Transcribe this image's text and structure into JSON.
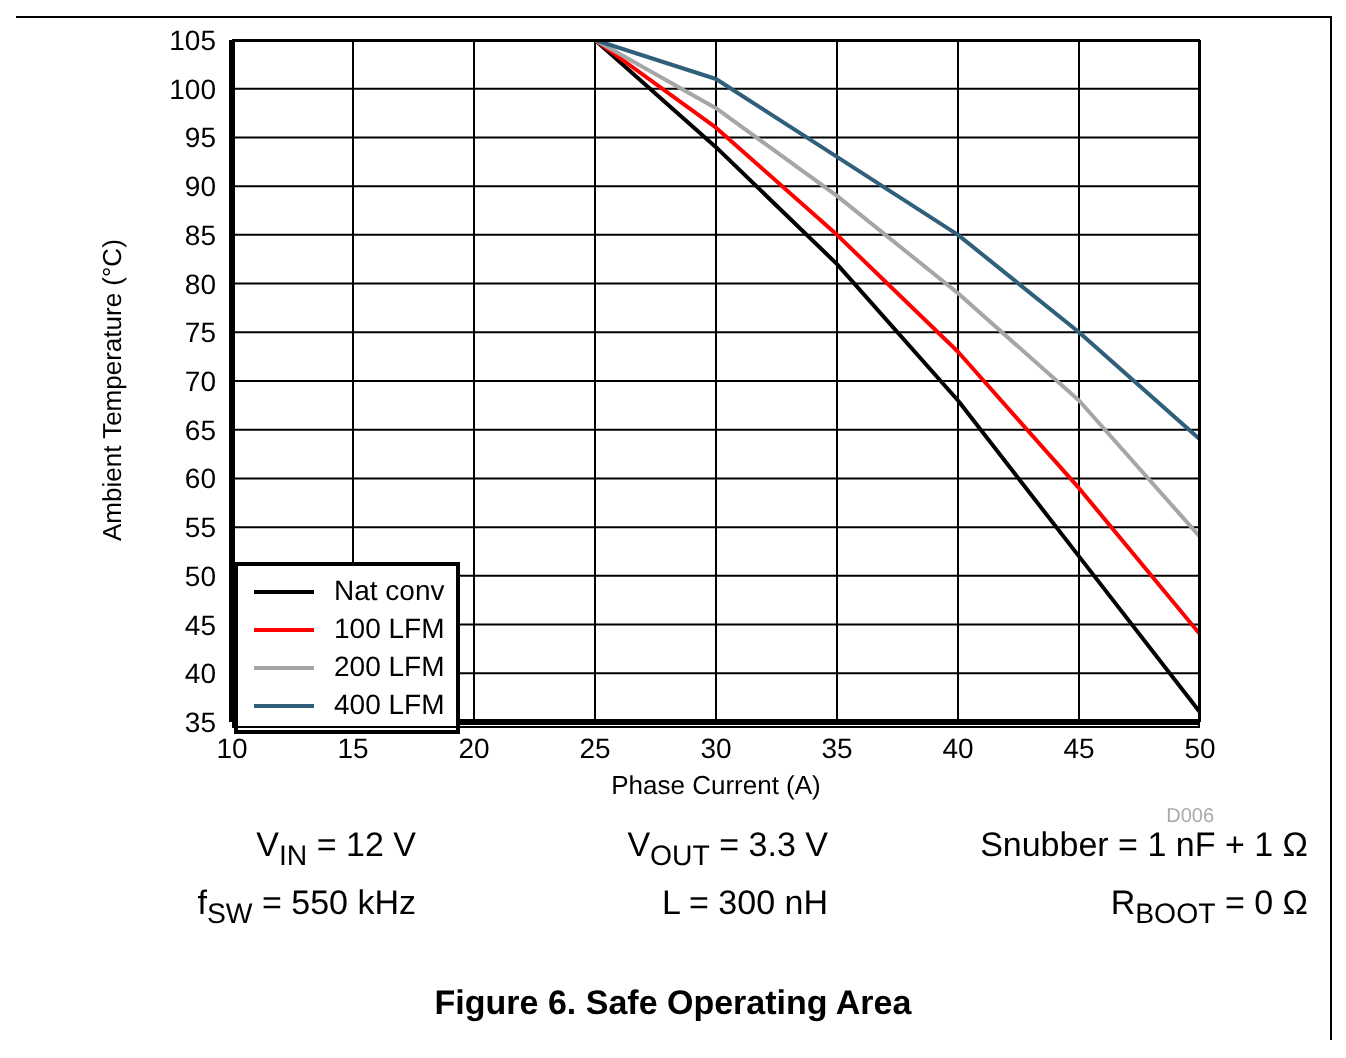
{
  "chart_data": {
    "type": "line",
    "title": "Figure 6. Safe Operating Area",
    "xlabel": "Phase Current (A)",
    "ylabel": "Ambient Temperature (°C)",
    "x": [
      25,
      30,
      35,
      40,
      45,
      50
    ],
    "series": [
      {
        "name": "Nat conv",
        "color": "#000000",
        "values": [
          105,
          94,
          82,
          68,
          52,
          36
        ]
      },
      {
        "name": "100 LFM",
        "color": "#ff0000",
        "values": [
          105,
          96,
          85,
          73,
          59,
          44
        ]
      },
      {
        "name": "200 LFM",
        "color": "#a6a6a6",
        "values": [
          105,
          98,
          89,
          79,
          68,
          54
        ]
      },
      {
        "name": "400 LFM",
        "color": "#2f5f7a",
        "values": [
          105,
          101,
          93,
          85,
          75,
          64
        ]
      }
    ],
    "xlim": [
      10,
      50
    ],
    "xticks": [
      10,
      15,
      20,
      25,
      30,
      35,
      40,
      45,
      50
    ],
    "ylim": [
      35,
      105
    ],
    "yticks": [
      35,
      40,
      45,
      50,
      55,
      60,
      65,
      70,
      75,
      80,
      85,
      90,
      95,
      100,
      105
    ],
    "grid": true,
    "legend": "bottom left",
    "marker": "none",
    "line_style": "solid",
    "annotations": [
      "D006",
      "V$_{IN}$ = 12 V",
      "V$_{OUT}$ = 3.3 V",
      "Snubber = 1 nF + 1 Ω",
      "f$_{SW}$ = 550 kHz",
      "L = 300 nH",
      "R$_{BOOT}$ = 0 Ω"
    ]
  }
}
